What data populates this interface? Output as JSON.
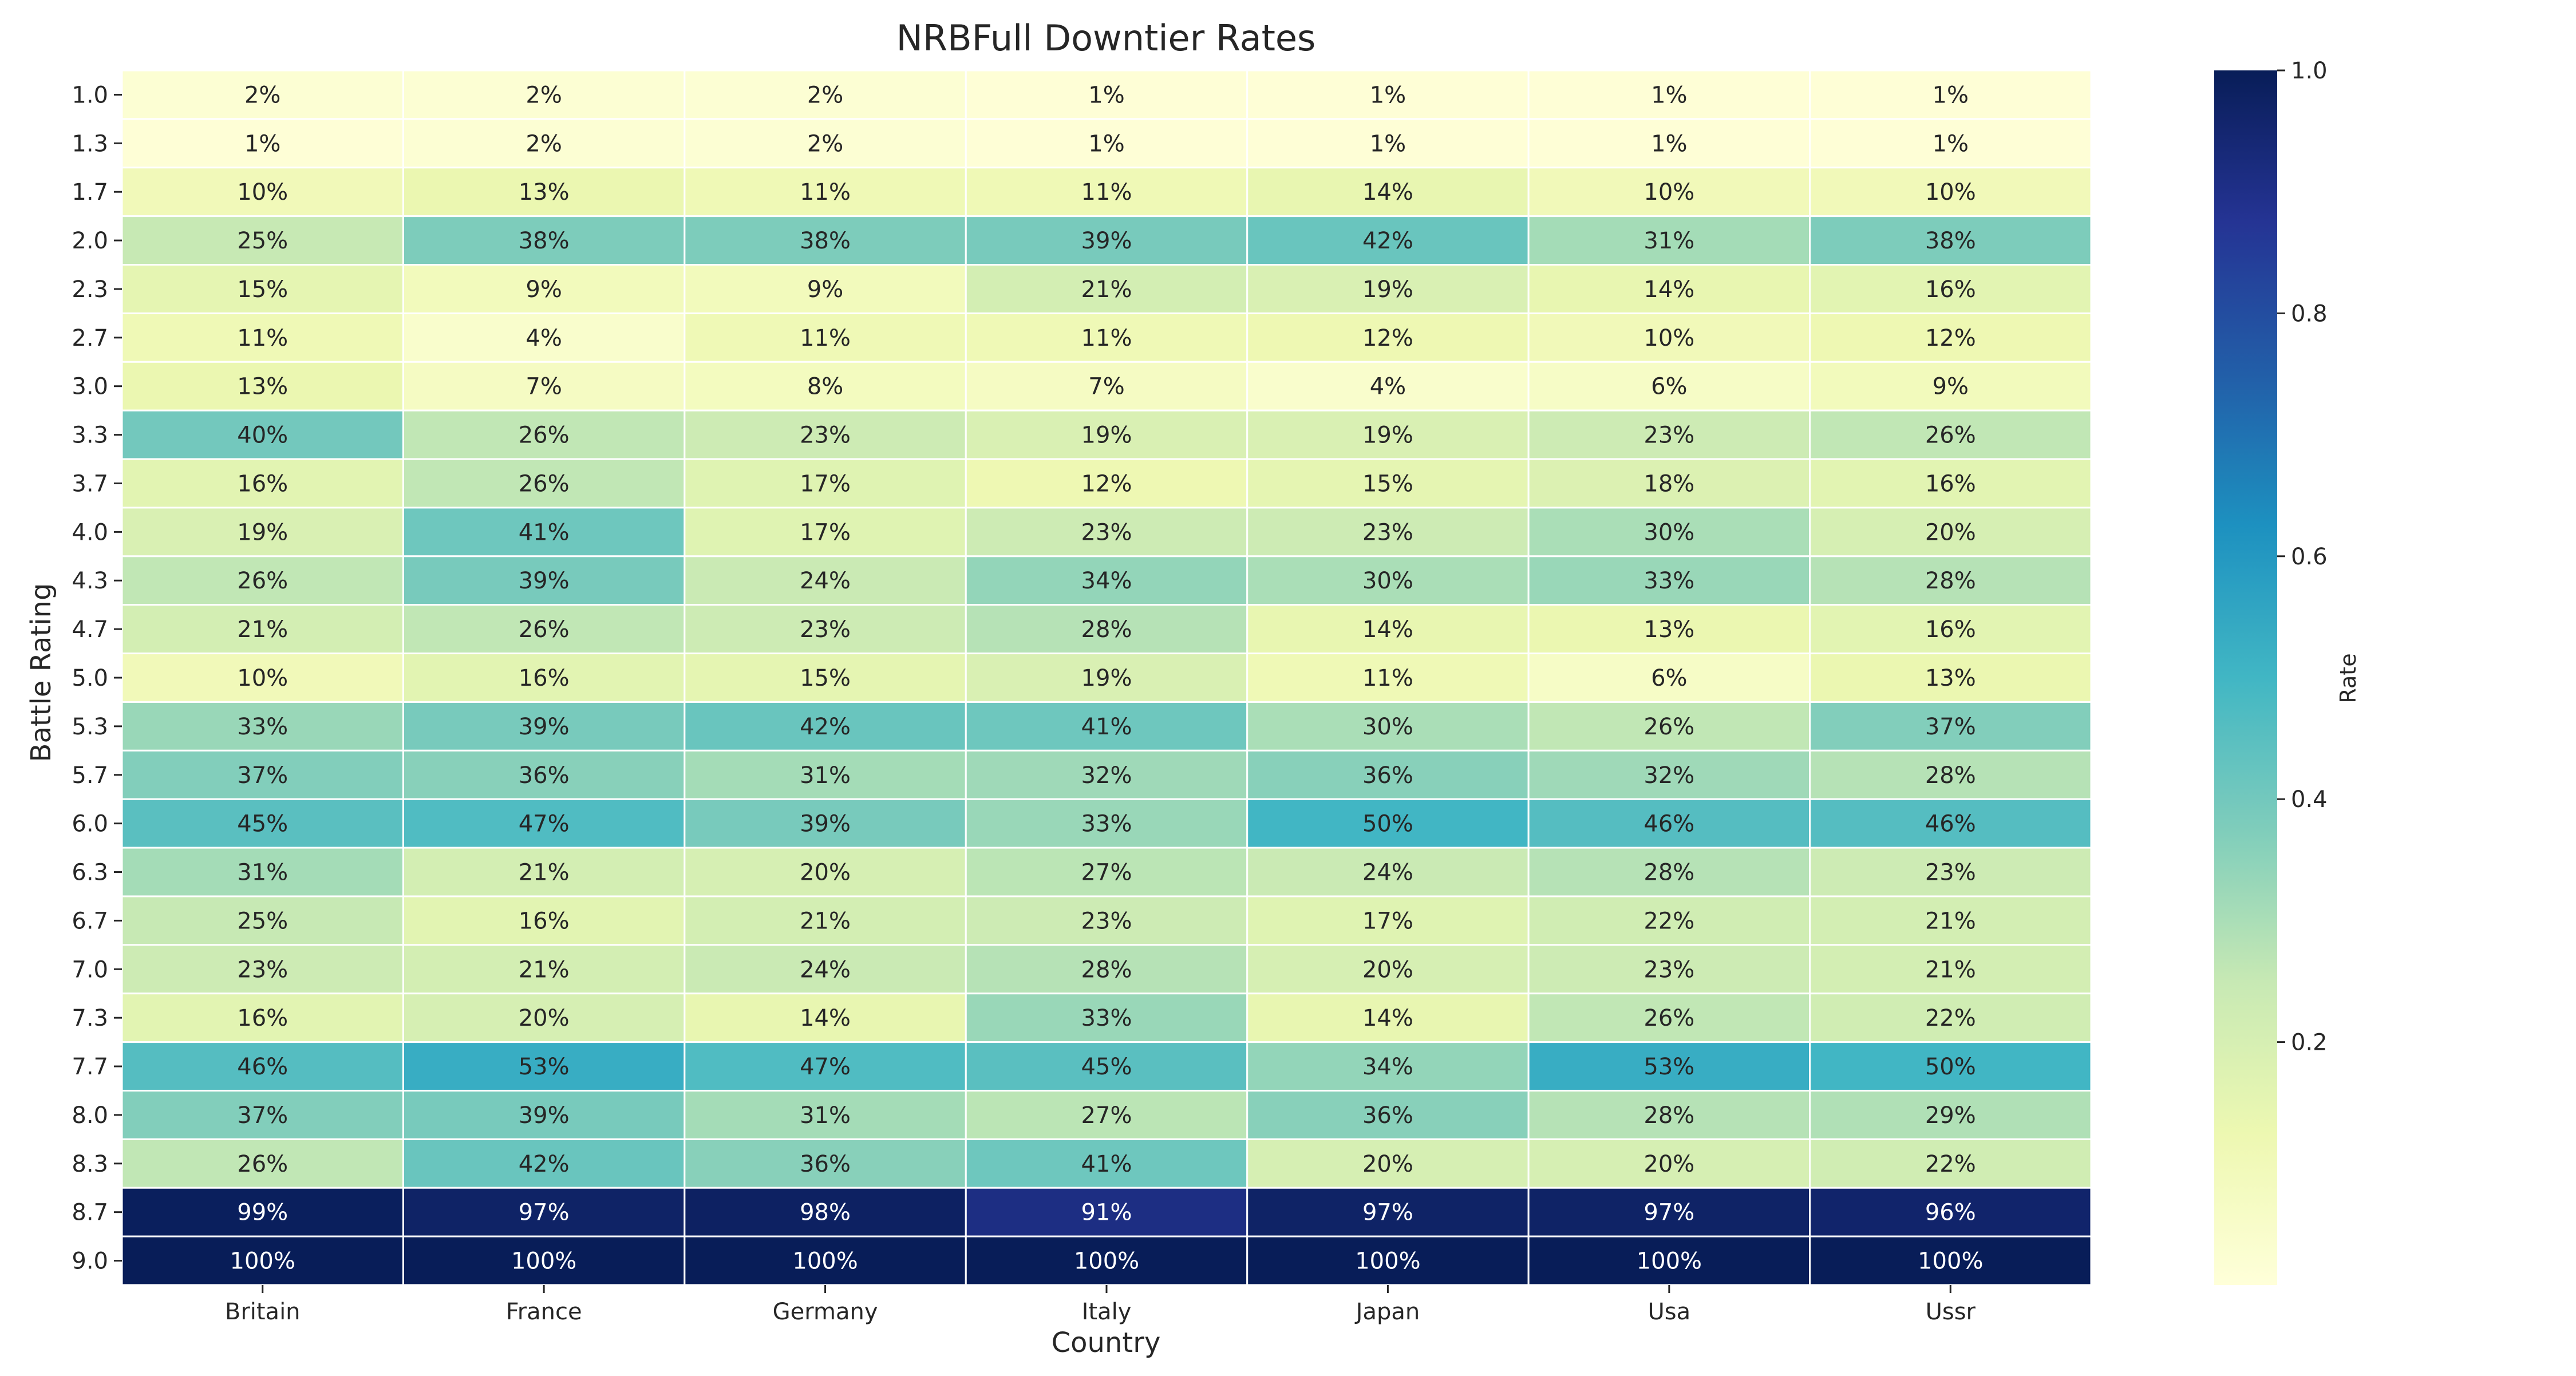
{
  "chart_data": {
    "type": "heatmap",
    "title": "NRBFull Downtier Rates",
    "xlabel": "Country",
    "ylabel": "Battle Rating",
    "x": [
      "Britain",
      "France",
      "Germany",
      "Italy",
      "Japan",
      "Usa",
      "Ussr"
    ],
    "y": [
      "1.0",
      "1.3",
      "1.7",
      "2.0",
      "2.3",
      "2.7",
      "3.0",
      "3.3",
      "3.7",
      "4.0",
      "4.3",
      "4.7",
      "5.0",
      "5.3",
      "5.7",
      "6.0",
      "6.3",
      "6.7",
      "7.0",
      "7.3",
      "7.7",
      "8.0",
      "8.3",
      "8.7",
      "9.0"
    ],
    "values": [
      [
        2,
        2,
        2,
        1,
        1,
        1,
        1
      ],
      [
        1,
        2,
        2,
        1,
        1,
        1,
        1
      ],
      [
        10,
        13,
        11,
        11,
        14,
        10,
        10
      ],
      [
        25,
        38,
        38,
        39,
        42,
        31,
        38
      ],
      [
        15,
        9,
        9,
        21,
        19,
        14,
        16
      ],
      [
        11,
        4,
        11,
        11,
        12,
        10,
        12
      ],
      [
        13,
        7,
        8,
        7,
        4,
        6,
        9
      ],
      [
        40,
        26,
        23,
        19,
        19,
        23,
        26
      ],
      [
        16,
        26,
        17,
        12,
        15,
        18,
        16
      ],
      [
        19,
        41,
        17,
        23,
        23,
        30,
        20
      ],
      [
        26,
        39,
        24,
        34,
        30,
        33,
        28
      ],
      [
        21,
        26,
        23,
        28,
        14,
        13,
        16
      ],
      [
        10,
        16,
        15,
        19,
        11,
        6,
        13
      ],
      [
        33,
        39,
        42,
        41,
        30,
        26,
        37
      ],
      [
        37,
        36,
        31,
        32,
        36,
        32,
        28
      ],
      [
        45,
        47,
        39,
        33,
        50,
        46,
        46
      ],
      [
        31,
        21,
        20,
        27,
        24,
        28,
        23
      ],
      [
        25,
        16,
        21,
        23,
        17,
        22,
        21
      ],
      [
        23,
        21,
        24,
        28,
        20,
        23,
        21
      ],
      [
        16,
        20,
        14,
        33,
        14,
        26,
        22
      ],
      [
        46,
        53,
        47,
        45,
        34,
        53,
        50
      ],
      [
        37,
        39,
        31,
        27,
        36,
        28,
        29
      ],
      [
        26,
        42,
        36,
        41,
        20,
        20,
        22
      ],
      [
        99,
        97,
        98,
        91,
        97,
        97,
        96
      ],
      [
        100,
        100,
        100,
        100,
        100,
        100,
        100
      ]
    ],
    "value_format": "percent",
    "colormap": "YlGnBu",
    "colorbar": {
      "label": "Rate",
      "range": [
        0,
        1
      ],
      "ticks": [
        "0.2",
        "0.4",
        "0.6",
        "0.8",
        "1.0"
      ]
    },
    "colors": {
      "cell_border": "#ffffff",
      "text_dark": "#262626",
      "text_light": "#ffffff"
    }
  }
}
